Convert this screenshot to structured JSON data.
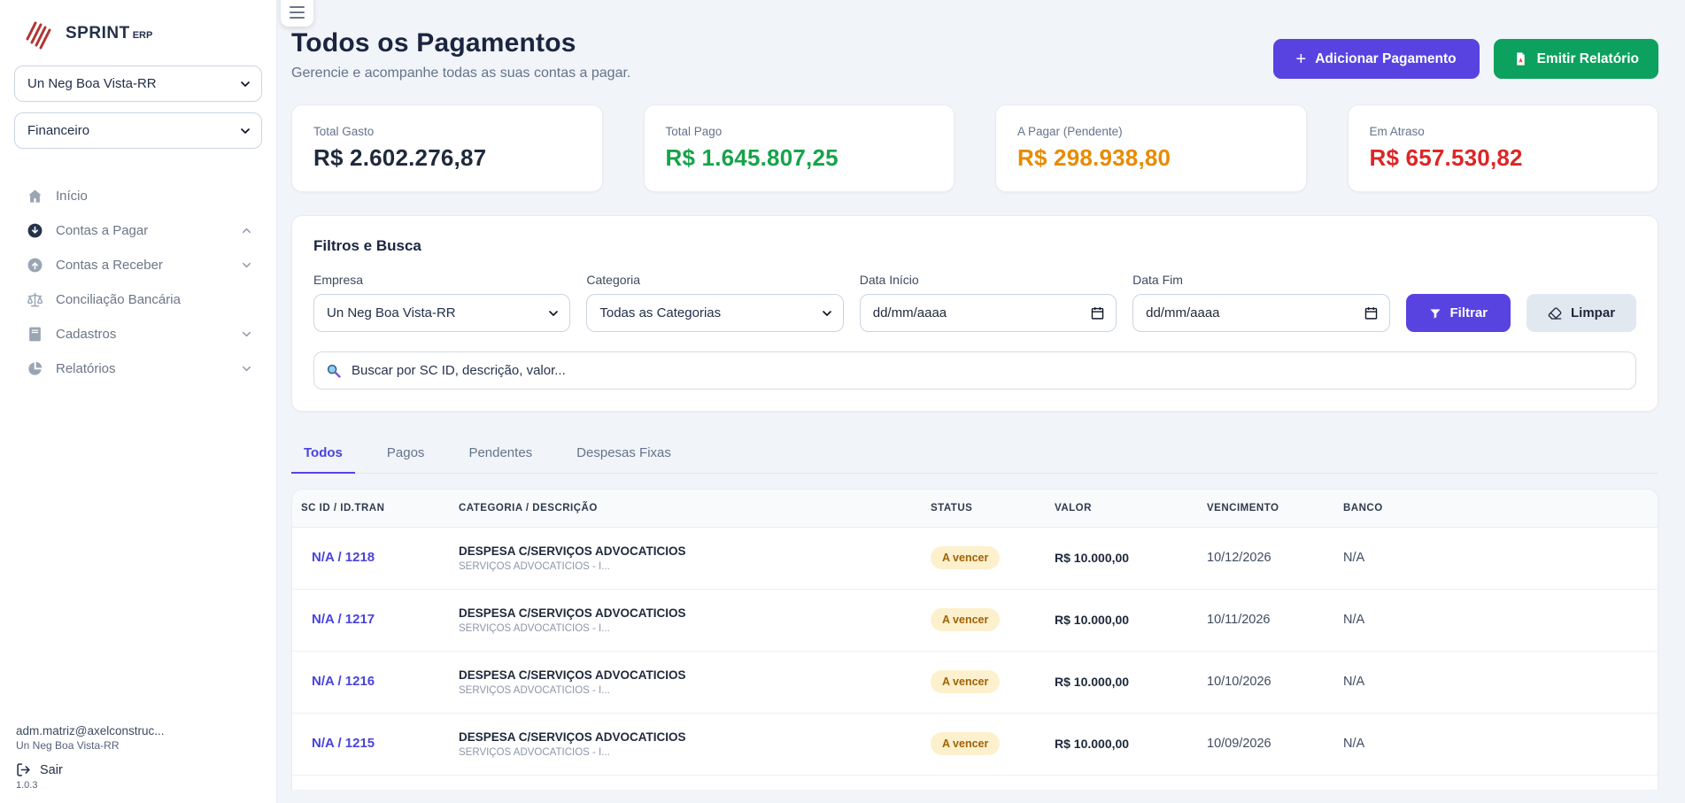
{
  "app": {
    "brand": "SPRINT",
    "brand_suffix": "ERP"
  },
  "sidebar": {
    "company_select": "Un Neg Boa Vista-RR",
    "module_select": "Financeiro",
    "menu": [
      {
        "label": "Início",
        "icon": "home-icon",
        "chevron": ""
      },
      {
        "label": "Contas a Pagar",
        "icon": "circle-arrow-down-icon",
        "chevron": "up"
      },
      {
        "label": "Contas a Receber",
        "icon": "circle-arrow-up-icon",
        "chevron": "down"
      },
      {
        "label": "Conciliação Bancária",
        "icon": "scale-icon",
        "chevron": ""
      },
      {
        "label": "Cadastros",
        "icon": "book-icon",
        "chevron": "down"
      },
      {
        "label": "Relatórios",
        "icon": "pie-chart-icon",
        "chevron": "down"
      }
    ],
    "footer": {
      "user_email": "adm.matriz@axelconstruc...",
      "company": "Un Neg Boa Vista-RR",
      "logout_label": "Sair",
      "version": "1.0.3"
    }
  },
  "header": {
    "title": "Todos os Pagamentos",
    "subtitle": "Gerencie e acompanhe todas as suas contas a pagar.",
    "add_button": "Adicionar Pagamento",
    "report_button": "Emitir Relatório"
  },
  "stats": [
    {
      "label": "Total Gasto",
      "value": "R$ 2.602.276,87",
      "color": "#1e2a3b"
    },
    {
      "label": "Total Pago",
      "value": "R$ 1.645.807,25",
      "color": "#17a34a"
    },
    {
      "label": "A Pagar (Pendente)",
      "value": "R$ 298.938,80",
      "color": "#e88b00"
    },
    {
      "label": "Em Atraso",
      "value": "R$ 657.530,82",
      "color": "#dc2626"
    }
  ],
  "filters": {
    "title": "Filtros e Busca",
    "empresa_label": "Empresa",
    "empresa_value": "Un Neg Boa Vista-RR",
    "categoria_label": "Categoria",
    "categoria_value": "Todas as Categorias",
    "data_inicio_label": "Data Início",
    "data_inicio_placeholder": "dd/mm/aaaa",
    "data_fim_label": "Data Fim",
    "data_fim_placeholder": "dd/mm/aaaa",
    "filter_button": "Filtrar",
    "clear_button": "Limpar",
    "search_placeholder": "Buscar por SC ID, descrição, valor..."
  },
  "tabs": [
    {
      "label": "Todos",
      "active": true
    },
    {
      "label": "Pagos",
      "active": false
    },
    {
      "label": "Pendentes",
      "active": false
    },
    {
      "label": "Despesas Fixas",
      "active": false
    }
  ],
  "table": {
    "columns": [
      "SC ID / ID.TRAN",
      "CATEGORIA / DESCRIÇÃO",
      "STATUS",
      "VALOR",
      "VENCIMENTO",
      "BANCO"
    ],
    "rows": [
      {
        "id": "N/A / 1218",
        "category": "DESPESA C/SERVIÇOS ADVOCATICIOS",
        "description": "SERVIÇOS ADVOCATICIOS - I...",
        "status": "A vencer",
        "value": "R$ 10.000,00",
        "due_date": "10/12/2026",
        "bank": "N/A"
      },
      {
        "id": "N/A / 1217",
        "category": "DESPESA C/SERVIÇOS ADVOCATICIOS",
        "description": "SERVIÇOS ADVOCATICIOS - I...",
        "status": "A vencer",
        "value": "R$ 10.000,00",
        "due_date": "10/11/2026",
        "bank": "N/A"
      },
      {
        "id": "N/A / 1216",
        "category": "DESPESA C/SERVIÇOS ADVOCATICIOS",
        "description": "SERVIÇOS ADVOCATICIOS - I...",
        "status": "A vencer",
        "value": "R$ 10.000,00",
        "due_date": "10/10/2026",
        "bank": "N/A"
      },
      {
        "id": "N/A / 1215",
        "category": "DESPESA C/SERVIÇOS ADVOCATICIOS",
        "description": "SERVIÇOS ADVOCATICIOS - I...",
        "status": "A vencer",
        "value": "R$ 10.000,00",
        "due_date": "10/09/2026",
        "bank": "N/A"
      }
    ]
  },
  "colors": {
    "accent_indigo": "#5843e1",
    "success_green": "#0ca15e",
    "badge_bg": "#fdf0cd",
    "badge_text": "#a16207",
    "logo_red": "#b23434"
  }
}
